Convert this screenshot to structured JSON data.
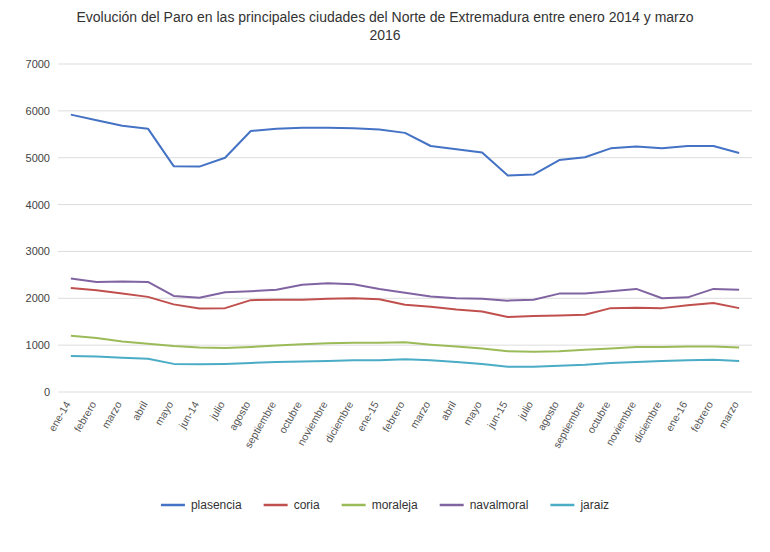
{
  "chart_data": {
    "type": "line",
    "title": "Evolución del Paro en las principales ciudades del Norte de Extremadura entre enero 2014 y marzo\n2016",
    "categories": [
      "ene-14",
      "febrero",
      "marzo",
      "abril",
      "mayo",
      "jun-14",
      "julio",
      "agosto",
      "septiembre",
      "octubre",
      "noviembre",
      "diciembre",
      "ene-15",
      "febrero",
      "marzo",
      "abril",
      "mayo",
      "jun-15",
      "julio",
      "agosto",
      "septiembre",
      "octubre",
      "noviembre",
      "diciembre",
      "ene-16",
      "febrero",
      "marzo"
    ],
    "series": [
      {
        "name": "plasencia",
        "color": "#4472C4",
        "values": [
          5920,
          5800,
          5680,
          5620,
          4820,
          4810,
          5000,
          5570,
          5620,
          5640,
          5640,
          5630,
          5600,
          5530,
          5250,
          5180,
          5110,
          4620,
          4640,
          4950,
          5010,
          5200,
          5240,
          5200,
          5250,
          5250,
          5100
        ]
      },
      {
        "name": "coria",
        "color": "#C0504D",
        "values": [
          2220,
          2170,
          2100,
          2030,
          1870,
          1780,
          1790,
          1960,
          1970,
          1970,
          1990,
          2000,
          1980,
          1860,
          1820,
          1760,
          1720,
          1600,
          1620,
          1630,
          1650,
          1790,
          1800,
          1790,
          1850,
          1900,
          1790
        ]
      },
      {
        "name": "moraleja",
        "color": "#9BBB59",
        "values": [
          1200,
          1150,
          1080,
          1030,
          980,
          950,
          940,
          960,
          990,
          1020,
          1040,
          1050,
          1050,
          1060,
          1010,
          970,
          930,
          870,
          860,
          870,
          900,
          930,
          960,
          960,
          970,
          970,
          950
        ]
      },
      {
        "name": "navalmoral",
        "color": "#8064A2",
        "values": [
          2420,
          2350,
          2360,
          2350,
          2050,
          2010,
          2130,
          2150,
          2180,
          2290,
          2320,
          2300,
          2200,
          2120,
          2040,
          2000,
          1990,
          1950,
          1970,
          2100,
          2100,
          2150,
          2200,
          2000,
          2020,
          2200,
          2180
        ]
      },
      {
        "name": "jaraiz",
        "color": "#4BACC6",
        "values": [
          770,
          760,
          730,
          710,
          600,
          590,
          600,
          620,
          640,
          650,
          660,
          680,
          680,
          700,
          680,
          640,
          600,
          540,
          540,
          560,
          580,
          620,
          640,
          660,
          680,
          690,
          660
        ]
      }
    ],
    "ylim": [
      0,
      7000
    ],
    "yticks": [
      0,
      1000,
      2000,
      3000,
      4000,
      5000,
      6000,
      7000
    ],
    "grid": true,
    "legend": "bottom"
  }
}
